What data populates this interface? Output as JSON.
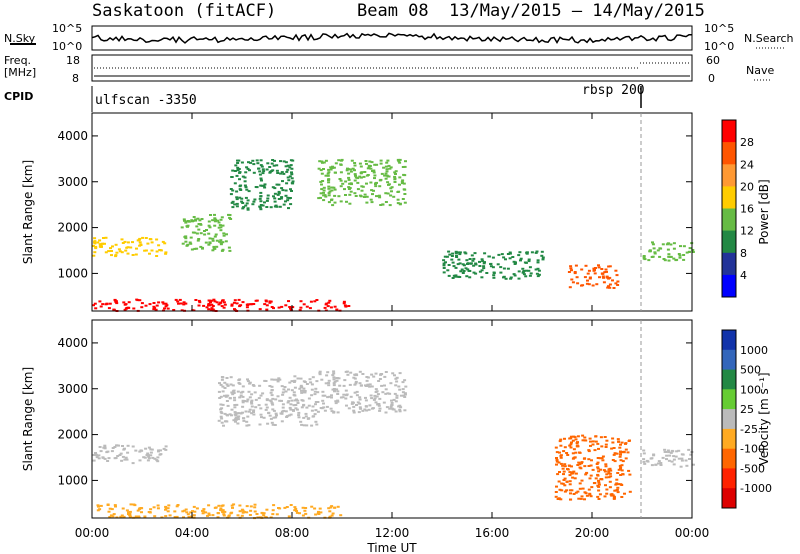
{
  "header": {
    "site": "Saskatoon (fitACF)",
    "beam": "Beam 08",
    "date_range": "13/May/2015 – 14/May/2015"
  },
  "nsky": {
    "label": "N.Sky",
    "tick_top": "10^5",
    "tick_bottom": "10^0",
    "right_tick_top": "10^5",
    "right_tick_bottom": "10^0",
    "right_label": "N.Search"
  },
  "freq": {
    "label_line1": "Freq.",
    "label_line2": "[MHz]",
    "tick_top": "18",
    "tick_bottom": "8",
    "right_tick_top": "60",
    "right_tick_bottom": "0",
    "right_label": "Nave"
  },
  "cpid": {
    "label": "CPID",
    "segments": [
      {
        "name": "ulfscan -3350",
        "start_hour": 0,
        "end_hour": 22
      },
      {
        "name": "rbsp 200",
        "start_hour": 22,
        "end_hour": 24
      }
    ]
  },
  "power_colorbar": {
    "label": "Power [dB]",
    "ticks": [
      "28",
      "24",
      "20",
      "16",
      "12",
      "8",
      "4"
    ],
    "colors": [
      "#ff0000",
      "#ff5500",
      "#ff9933",
      "#ffcc00",
      "#66bb44",
      "#228844",
      "#223399",
      "#0000ff"
    ]
  },
  "velocity_colorbar": {
    "label": "Velocity [m s⁻¹]",
    "ticks": [
      "1000",
      "500",
      "100",
      "25",
      "-25",
      "-100",
      "-500",
      "-1000"
    ],
    "colors": [
      "#1133aa",
      "#3366bb",
      "#228844",
      "#66cc33",
      "#bbbbbb",
      "#ffaa22",
      "#ff6600",
      "#ff2200",
      "#dd0000"
    ]
  },
  "chart_data": [
    {
      "type": "heatmap",
      "title": "Power",
      "ylabel": "Slant Range [km]",
      "ylim": [
        180,
        4500
      ],
      "y_ticks": [
        "1000",
        "2000",
        "3000",
        "4000"
      ],
      "x_ticks": [
        "00:00",
        "04:00",
        "08:00",
        "12:00",
        "16:00",
        "20:00",
        "00:00"
      ],
      "xlim_hours": [
        0,
        24
      ],
      "bands": [
        {
          "hours": [
            0,
            10.5
          ],
          "range_km": [
            200,
            450
          ],
          "value_db": 28
        },
        {
          "hours": [
            0,
            3
          ],
          "range_km": [
            1400,
            1800
          ],
          "value_db": 16
        },
        {
          "hours": [
            3.5,
            5.5
          ],
          "range_km": [
            1500,
            2300
          ],
          "value_db": 12
        },
        {
          "hours": [
            5.5,
            8
          ],
          "range_km": [
            2400,
            3500
          ],
          "value_db": 8
        },
        {
          "hours": [
            9,
            12.5
          ],
          "range_km": [
            2500,
            3500
          ],
          "value_db": 12
        },
        {
          "hours": [
            14,
            18
          ],
          "range_km": [
            900,
            1500
          ],
          "value_db": 8
        },
        {
          "hours": [
            19,
            21
          ],
          "range_km": [
            700,
            1200
          ],
          "value_db": 24
        },
        {
          "hours": [
            22,
            24
          ],
          "range_km": [
            1300,
            1700
          ],
          "value_db": 12
        }
      ]
    },
    {
      "type": "heatmap",
      "title": "Velocity",
      "ylabel": "Slant Range [km]",
      "xlabel": "Time UT",
      "ylim": [
        180,
        4500
      ],
      "y_ticks": [
        "1000",
        "2000",
        "3000",
        "4000"
      ],
      "x_ticks": [
        "00:00",
        "04:00",
        "08:00",
        "12:00",
        "16:00",
        "20:00",
        "00:00"
      ],
      "xlim_hours": [
        0,
        24
      ],
      "bands": [
        {
          "hours": [
            0,
            10
          ],
          "range_km": [
            200,
            500
          ],
          "value_ms": -100
        },
        {
          "hours": [
            0,
            3
          ],
          "range_km": [
            1400,
            1800
          ],
          "value_ms": 0
        },
        {
          "hours": [
            5,
            9
          ],
          "range_km": [
            2200,
            3300
          ],
          "value_ms": 0
        },
        {
          "hours": [
            9,
            12.5
          ],
          "range_km": [
            2500,
            3400
          ],
          "value_ms": 0
        },
        {
          "hours": [
            18.5,
            21.5
          ],
          "range_km": [
            600,
            2000
          ],
          "value_ms": -500
        },
        {
          "hours": [
            22,
            24
          ],
          "range_km": [
            1300,
            1700
          ],
          "value_ms": 0
        }
      ]
    }
  ],
  "time_axis_label": "Time UT"
}
